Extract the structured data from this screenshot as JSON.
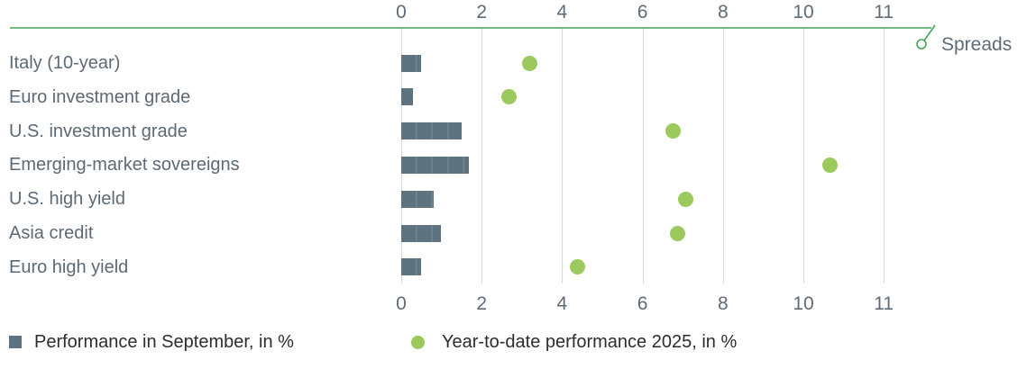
{
  "chart_data": {
    "type": "bar",
    "title": "",
    "axis_label": "Spreads",
    "categories": [
      "Italy (10-year)",
      "Euro investment grade",
      "U.S. investment grade",
      "Emerging-market sovereigns",
      "U.S. high yield",
      "Asia credit",
      "Euro high yield"
    ],
    "series": [
      {
        "name": "Performance in September, in %",
        "marker": "bar",
        "color": "#5d7380",
        "values": [
          0.5,
          0.3,
          1.5,
          1.7,
          0.8,
          1.0,
          0.5
        ]
      },
      {
        "name": "Year-to-date performance 2025, in %",
        "marker": "dot",
        "color": "#9cc95b",
        "values": [
          3.2,
          2.7,
          6.8,
          10.7,
          7.1,
          6.9,
          4.4
        ]
      }
    ],
    "x_tick_labels": [
      "0",
      "2",
      "4",
      "6",
      "8",
      "10",
      "11"
    ],
    "xlim": [
      0,
      12
    ],
    "grid": true,
    "legend_position": "bottom",
    "colors": {
      "axis_line": "#46a35a",
      "gridline": "#d8dbdd",
      "tick_text": "#5f6b76",
      "category_text": "#5d6974",
      "legend_text": "#2d2d2d"
    }
  }
}
